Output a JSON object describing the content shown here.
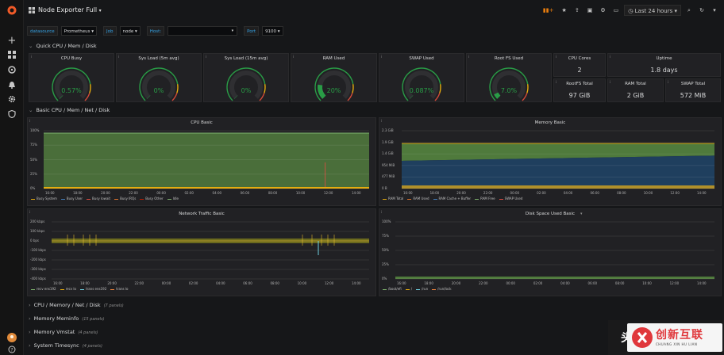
{
  "topbar": {
    "title": "Node Exporter Full",
    "time_range": "Last 24 hours"
  },
  "variables": {
    "datasource_label": "datasource",
    "datasource_value": "Prometheus",
    "job_label": "Job",
    "job_value": "node",
    "host_label": "Host:",
    "host_value": "",
    "port_label": "Port",
    "port_value": "9100"
  },
  "rows": {
    "quick": "Quick CPU / Mem / Disk",
    "basic": "Basic CPU / Mem / Net / Disk",
    "collapsed": [
      {
        "title": "CPU / Memory / Net / Disk",
        "count": "(7 panels)"
      },
      {
        "title": "Memory Meminfo",
        "count": "(15 panels)"
      },
      {
        "title": "Memory Vmstat",
        "count": "(4 panels)"
      },
      {
        "title": "System Timesync",
        "count": "(4 panels)"
      }
    ]
  },
  "gauges": [
    {
      "title": "CPU Busy",
      "value": "0.57%",
      "fraction": 0.0057,
      "color": "#299c46"
    },
    {
      "title": "Sys Load (5m avg)",
      "value": "0%",
      "fraction": 0,
      "color": "#299c46"
    },
    {
      "title": "Sys Load (15m avg)",
      "value": "0%",
      "fraction": 0,
      "color": "#299c46"
    },
    {
      "title": "RAM Used",
      "value": "20%",
      "fraction": 0.2,
      "color": "#299c46"
    },
    {
      "title": "SWAP Used",
      "value": "0.087%",
      "fraction": 0.00087,
      "color": "#299c46"
    },
    {
      "title": "Root FS Used",
      "value": "7.0%",
      "fraction": 0.07,
      "color": "#299c46"
    }
  ],
  "stats": {
    "cpu_cores": {
      "title": "CPU Cores",
      "value": "2"
    },
    "uptime": {
      "title": "Uptime",
      "value": "1.8 days"
    },
    "rootfs_total": {
      "title": "RootFS Total",
      "value": "97 GiB"
    },
    "ram_total": {
      "title": "RAM Total",
      "value": "2 GiB"
    },
    "swap_total": {
      "title": "SWAP Total",
      "value": "572 MiB"
    }
  },
  "cpu_panel": {
    "title": "CPU Basic",
    "y_ticks": [
      "100%",
      "75%",
      "50%",
      "25%",
      "0%"
    ],
    "x_ticks": [
      "16:00",
      "18:00",
      "20:00",
      "22:00",
      "00:00",
      "02:00",
      "04:00",
      "06:00",
      "08:00",
      "10:00",
      "12:00",
      "14:00"
    ],
    "legend": [
      {
        "name": "Busy System",
        "color": "#e5ac0e"
      },
      {
        "name": "Busy User",
        "color": "#447ebc"
      },
      {
        "name": "Busy Iowait",
        "color": "#e24d42"
      },
      {
        "name": "Busy IRQs",
        "color": "#e0752d"
      },
      {
        "name": "Busy Other",
        "color": "#bf1b00"
      },
      {
        "name": "Idle",
        "color": "#7eb26d"
      }
    ]
  },
  "mem_panel": {
    "title": "Memory Basic",
    "y_ticks": [
      "2.3 GiB",
      "1.9 GiB",
      "1.4 GiB",
      "954 MiB",
      "477 MiB",
      "0 B"
    ],
    "x_ticks": [
      "16:00",
      "18:00",
      "20:00",
      "22:00",
      "00:00",
      "02:00",
      "04:00",
      "06:00",
      "08:00",
      "10:00",
      "12:00",
      "14:00"
    ],
    "legend": [
      {
        "name": "RAM Total",
        "color": "#e5ac0e"
      },
      {
        "name": "RAM Used",
        "color": "#e0752d"
      },
      {
        "name": "RAM Cache + Buffer",
        "color": "#447ebc"
      },
      {
        "name": "RAM Free",
        "color": "#7eb26d"
      },
      {
        "name": "SWAP Used",
        "color": "#e24d42"
      }
    ]
  },
  "net_panel": {
    "title": "Network Traffic Basic",
    "y_ticks": [
      "200 kbps",
      "100 kbps",
      "0 bps",
      "-100 kbps",
      "-200 kbps",
      "-300 kbps",
      "-400 kbps"
    ],
    "x_ticks": [
      "16:00",
      "18:00",
      "20:00",
      "22:00",
      "00:00",
      "02:00",
      "04:00",
      "06:00",
      "08:00",
      "10:00",
      "12:00",
      "14:00"
    ],
    "legend": [
      {
        "name": "recv ens192",
        "color": "#7eb26d"
      },
      {
        "name": "recv lo",
        "color": "#e5ac0e"
      },
      {
        "name": "trans ens192",
        "color": "#6ed0e0"
      },
      {
        "name": "trans lo",
        "color": "#ef843c"
      }
    ]
  },
  "disk_panel": {
    "title": "Disk Space Used Basic",
    "y_ticks": [
      "100%",
      "75%",
      "50%",
      "25%",
      "0%"
    ],
    "x_ticks": [
      "16:00",
      "18:00",
      "20:00",
      "22:00",
      "00:00",
      "02:00",
      "04:00",
      "06:00",
      "08:00",
      "10:00",
      "12:00",
      "14:00"
    ],
    "legend": [
      {
        "name": "/boot/efi",
        "color": "#7eb26d"
      },
      {
        "name": "/",
        "color": "#e5ac0e"
      },
      {
        "name": "/run",
        "color": "#6ed0e0"
      },
      {
        "name": "/run/lock",
        "color": "#ef843c"
      }
    ]
  },
  "watermark": {
    "text": "头条 (",
    "brand": "创新互联",
    "brand_sub": "CHUANG XIN HU LIAN"
  }
}
